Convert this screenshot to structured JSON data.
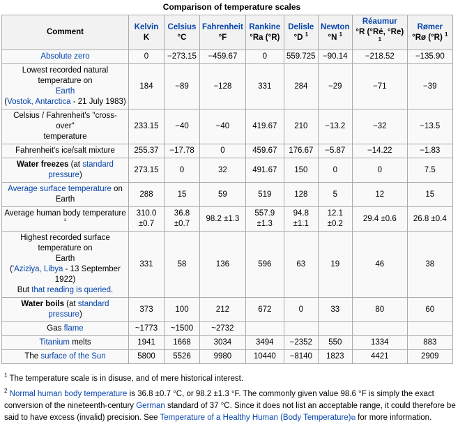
{
  "table": {
    "caption": "Comparison of temperature scales",
    "headers": [
      {
        "name": "Comment",
        "unit": ""
      },
      {
        "name": "Kelvin",
        "unit": "K"
      },
      {
        "name": "Celsius",
        "unit": "°C"
      },
      {
        "name": "Fahrenheit",
        "unit": "°F"
      },
      {
        "name": "Rankine",
        "unit": "°Ra (°R)"
      },
      {
        "name": "Delisle",
        "unit": "°D",
        "sup": "1"
      },
      {
        "name": "Newton",
        "unit": "°N",
        "sup": "1"
      },
      {
        "name": "Réaumur",
        "unit": "°R (°Ré, °Re)",
        "sup": "1"
      },
      {
        "name": "Rømer",
        "unit": "°Rø (°R)",
        "sup": "1"
      }
    ],
    "rows": [
      {
        "comment": [
          {
            "t": "Absolute zero",
            "s": "link"
          }
        ],
        "values": [
          "0",
          "−273.15",
          "−459.67",
          "0",
          "559.725",
          "−90.14",
          "−218.52",
          "−135.90"
        ]
      },
      {
        "comment": [
          {
            "t": "Lowest recorded natural temperature on",
            "s": "plain"
          },
          {
            "t": "br"
          },
          {
            "t": "Earth",
            "s": "link"
          },
          {
            "t": "br"
          },
          {
            "t": "(",
            "s": "plain"
          },
          {
            "t": "Vostok, Antarctica",
            "s": "link"
          },
          {
            "t": " - 21 July 1983)",
            "s": "plain"
          }
        ],
        "values": [
          "184",
          "−89",
          "−128",
          "331",
          "284",
          "−29",
          "−71",
          "−39"
        ]
      },
      {
        "comment": [
          {
            "t": "Celsius / Fahrenheit's \"cross-over\"",
            "s": "plain"
          },
          {
            "t": "br"
          },
          {
            "t": "temperature",
            "s": "plain"
          }
        ],
        "values": [
          "233.15",
          "−40",
          "−40",
          "419.67",
          "210",
          "−13.2",
          "−32",
          "−13.5"
        ]
      },
      {
        "comment": [
          {
            "t": "Fahrenheit's ice/salt mixture",
            "s": "plain"
          }
        ],
        "values": [
          "255.37",
          "−17.78",
          "0",
          "459.67",
          "176.67",
          "−5.87",
          "−14.22",
          "−1.83"
        ]
      },
      {
        "comment": [
          {
            "t": "Water freezes",
            "s": "bold"
          },
          {
            "t": " (at ",
            "s": "plain"
          },
          {
            "t": "standard pressure",
            "s": "link"
          },
          {
            "t": ")",
            "s": "plain"
          }
        ],
        "values": [
          "273.15",
          "0",
          "32",
          "491.67",
          "150",
          "0",
          "0",
          "7.5"
        ]
      },
      {
        "comment": [
          {
            "t": "Average surface temperature",
            "s": "link"
          },
          {
            "t": " on Earth",
            "s": "plain"
          }
        ],
        "values": [
          "288",
          "15",
          "59",
          "519",
          "128",
          "5",
          "12",
          "15"
        ]
      },
      {
        "comment": [
          {
            "t": "Average human body temperature ",
            "s": "plain"
          },
          {
            "t": "²",
            "s": "sup"
          }
        ],
        "values": [
          "310.0 ±0.7",
          "36.8 ±0.7",
          "98.2 ±1.3",
          "557.9 ±1.3",
          "94.8 ±1.1",
          "12.1 ±0.2",
          "29.4 ±0.6",
          "26.8 ±0.4"
        ]
      },
      {
        "comment": [
          {
            "t": "Highest recorded surface temperature on",
            "s": "plain"
          },
          {
            "t": "br"
          },
          {
            "t": "Earth",
            "s": "plain"
          },
          {
            "t": "br"
          },
          {
            "t": "(",
            "s": "plain"
          },
          {
            "t": "'Aziziya, Libya",
            "s": "link"
          },
          {
            "t": " - 13 September 1922)",
            "s": "plain"
          },
          {
            "t": "br"
          },
          {
            "t": "But ",
            "s": "plain"
          },
          {
            "t": "that reading is queried",
            "s": "link"
          },
          {
            "t": ".",
            "s": "plain"
          }
        ],
        "values": [
          "331",
          "58",
          "136",
          "596",
          "63",
          "19",
          "46",
          "38"
        ]
      },
      {
        "comment": [
          {
            "t": "Water boils",
            "s": "bold"
          },
          {
            "t": " (at ",
            "s": "plain"
          },
          {
            "t": "standard pressure",
            "s": "link"
          },
          {
            "t": ")",
            "s": "plain"
          }
        ],
        "values": [
          "373",
          "100",
          "212",
          "672",
          "0",
          "33",
          "80",
          "60"
        ]
      },
      {
        "comment": [
          {
            "t": "Gas ",
            "s": "plain"
          },
          {
            "t": "flame",
            "s": "link"
          }
        ],
        "values": [
          "~1773",
          "~1500",
          "~2732",
          "",
          "",
          "",
          "",
          ""
        ]
      },
      {
        "comment": [
          {
            "t": "Titanium",
            "s": "link"
          },
          {
            "t": " melts",
            "s": "plain"
          }
        ],
        "values": [
          "1941",
          "1668",
          "3034",
          "3494",
          "−2352",
          "550",
          "1334",
          "883"
        ]
      },
      {
        "comment": [
          {
            "t": "The ",
            "s": "plain"
          },
          {
            "t": "surface of the Sun",
            "s": "link"
          }
        ],
        "values": [
          "5800",
          "5526",
          "9980",
          "10440",
          "−8140",
          "1823",
          "4421",
          "2909"
        ]
      }
    ]
  },
  "footnotes": [
    {
      "marker": "1",
      "parts": [
        {
          "t": " The temperature scale is in disuse, and of mere historical interest.",
          "s": "plain"
        }
      ]
    },
    {
      "marker": "2",
      "parts": [
        {
          "t": " ",
          "s": "plain"
        },
        {
          "t": "Normal human body temperature",
          "s": "link"
        },
        {
          "t": " is 36.8 ±0.7 °C, or 98.2 ±1.3 °F. The commonly given value 98.6 °F is simply the exact conversion of the nineteenth-century ",
          "s": "plain"
        },
        {
          "t": "German",
          "s": "link"
        },
        {
          "t": " standard of 37 °C. Since it does not list an acceptable range, it could therefore be said to have excess (invalid) precision. See ",
          "s": "plain"
        },
        {
          "t": "Temperature of a Healthy Human (Body Temperature)",
          "s": "link"
        },
        {
          "t": "⧉",
          "s": "ext"
        },
        {
          "t": " for more information.",
          "s": "plain"
        }
      ]
    }
  ],
  "colors": {
    "link": "#0645ad",
    "header_bg": "#f2f2f2",
    "cell_bg": "#f9f9f9",
    "border": "#aaaaaa"
  }
}
